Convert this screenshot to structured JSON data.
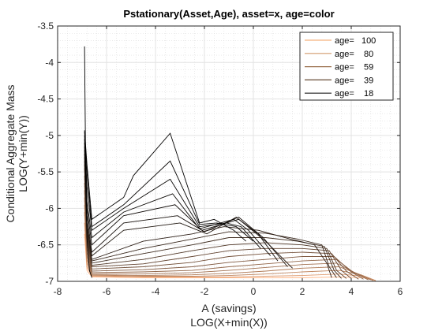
{
  "chart_data": {
    "type": "line",
    "title": "Pstationary(Asset,Age), asset=x, age=color",
    "xlabel": "A (savings)",
    "xlabel2": "LOG(X+min(X))",
    "ylabel": "Conditional Aggregate Mass",
    "ylabel2": "LOG(Y+min(Y))",
    "xlim": [
      -8,
      6
    ],
    "ylim": [
      -7,
      -3.5
    ],
    "xticks": [
      -8,
      -6,
      -4,
      -2,
      0,
      2,
      4,
      6
    ],
    "xtick_labels": [
      "-8",
      "-6",
      "-4",
      "-2",
      "0",
      "2",
      "4",
      "6"
    ],
    "yticks": [
      -7,
      -6.5,
      -6,
      -5.5,
      -5,
      -4.5,
      -4,
      -3.5
    ],
    "ytick_labels": [
      "-7",
      "-6.5",
      "-6",
      "-5.5",
      "-5",
      "-4.5",
      "-4",
      "-3.5"
    ],
    "grid": true,
    "minor_grid": true,
    "legend_position": "top-right",
    "legend": [
      {
        "label": "age=   100",
        "age": 100,
        "color": "#f5b27d"
      },
      {
        "label": "age=    80",
        "age": 80,
        "color": "#d39a6c"
      },
      {
        "label": "age=    59",
        "age": 59,
        "color": "#9c7250"
      },
      {
        "label": "age=    39",
        "age": 39,
        "color": "#664a34"
      },
      {
        "label": "age=    18",
        "age": 18,
        "color": "#1a1a1a"
      }
    ],
    "colormap": {
      "young": "#000000",
      "old": "#ffb27f"
    },
    "series": [
      {
        "age": 18,
        "x": [
          -6.9,
          -6.85,
          -6.8,
          -6.7,
          -6.6
        ],
        "y": [
          -3.78,
          -5.6,
          -6.4,
          -6.85,
          -6.95
        ]
      },
      {
        "age": 19,
        "x": [
          -6.9,
          -6.8,
          -6.6,
          -5.3,
          -4.9,
          -3.4,
          -2.2,
          -1.6,
          -0.8,
          -0.3
        ],
        "y": [
          -4.93,
          -5.4,
          -6.15,
          -5.85,
          -5.55,
          -4.97,
          -6.2,
          -6.15,
          -6.3,
          -6.45
        ]
      },
      {
        "age": 20,
        "x": [
          -6.9,
          -6.8,
          -6.6,
          -5.3,
          -3.4,
          -2.2,
          -1.5,
          -0.7,
          0.0
        ],
        "y": [
          -4.95,
          -5.5,
          -6.25,
          -5.95,
          -5.35,
          -6.22,
          -6.2,
          -6.25,
          -6.45
        ]
      },
      {
        "age": 21,
        "x": [
          -6.9,
          -6.8,
          -6.6,
          -5.3,
          -3.4,
          -2.2,
          -1.1,
          -0.5,
          0.3
        ],
        "y": [
          -5.0,
          -5.7,
          -6.3,
          -6.0,
          -5.6,
          -6.25,
          -6.2,
          -6.25,
          -6.55
        ]
      },
      {
        "age": 22,
        "x": [
          -6.9,
          -6.8,
          -6.6,
          -5.3,
          -3.3,
          -2.2,
          -0.8,
          -0.2,
          0.7
        ],
        "y": [
          -5.05,
          -5.9,
          -6.4,
          -6.05,
          -5.8,
          -6.28,
          -6.15,
          -6.3,
          -6.65
        ]
      },
      {
        "age": 23,
        "x": [
          -6.9,
          -6.8,
          -6.6,
          -5.3,
          -3.2,
          -2.1,
          -0.6,
          0.2,
          1.0
        ],
        "y": [
          -5.1,
          -6.0,
          -6.5,
          -6.1,
          -5.95,
          -6.3,
          -6.15,
          -6.35,
          -6.72
        ]
      },
      {
        "age": 25,
        "x": [
          -6.9,
          -6.8,
          -6.6,
          -5.3,
          -3.1,
          -2.0,
          -0.6,
          0.4,
          1.4
        ],
        "y": [
          -5.15,
          -6.1,
          -6.6,
          -6.2,
          -6.1,
          -6.32,
          -6.12,
          -6.4,
          -6.8
        ]
      },
      {
        "age": 28,
        "x": [
          -6.9,
          -6.8,
          -6.6,
          -5.3,
          -3.0,
          -1.9,
          -0.7,
          0.5,
          1.6
        ],
        "y": [
          -5.2,
          -6.2,
          -6.65,
          -6.3,
          -6.2,
          -6.35,
          -6.12,
          -6.45,
          -6.82
        ]
      },
      {
        "age": 32,
        "x": [
          -6.9,
          -6.8,
          -6.6,
          -4.5,
          -2.5,
          -1.2,
          0.2,
          1.5,
          2.5,
          3.0,
          3.2
        ],
        "y": [
          -5.25,
          -6.25,
          -6.7,
          -6.45,
          -6.35,
          -6.25,
          -6.3,
          -6.42,
          -6.5,
          -6.75,
          -6.95
        ]
      },
      {
        "age": 36,
        "x": [
          -6.9,
          -6.8,
          -6.6,
          -4.5,
          -2.5,
          -1.0,
          0.5,
          1.8,
          2.8,
          3.1,
          3.4
        ],
        "y": [
          -5.3,
          -6.3,
          -6.72,
          -6.55,
          -6.42,
          -6.32,
          -6.34,
          -6.42,
          -6.5,
          -6.8,
          -6.95
        ]
      },
      {
        "age": 39,
        "x": [
          -6.9,
          -6.8,
          -6.6,
          -4.5,
          -2.5,
          -1.0,
          0.5,
          1.8,
          2.9,
          3.3,
          3.6
        ],
        "y": [
          -5.35,
          -6.35,
          -6.75,
          -6.62,
          -6.5,
          -6.4,
          -6.4,
          -6.45,
          -6.52,
          -6.85,
          -6.96
        ]
      },
      {
        "age": 44,
        "x": [
          -6.9,
          -6.8,
          -6.6,
          -4.5,
          -2.5,
          -1.0,
          0.5,
          2.0,
          3.0,
          3.4,
          3.8
        ],
        "y": [
          -5.4,
          -6.4,
          -6.78,
          -6.7,
          -6.58,
          -6.5,
          -6.47,
          -6.5,
          -6.55,
          -6.85,
          -6.96
        ]
      },
      {
        "age": 50,
        "x": [
          -6.9,
          -6.8,
          -6.6,
          -4.5,
          -2.5,
          -1.0,
          0.5,
          2.0,
          3.1,
          3.6,
          4.0
        ],
        "y": [
          -5.45,
          -6.45,
          -6.8,
          -6.76,
          -6.66,
          -6.58,
          -6.55,
          -6.55,
          -6.58,
          -6.85,
          -6.96
        ]
      },
      {
        "age": 55,
        "x": [
          -6.9,
          -6.8,
          -6.6,
          -4.5,
          -2.5,
          -1.0,
          0.5,
          2.0,
          3.2,
          3.8,
          4.3
        ],
        "y": [
          -5.55,
          -6.5,
          -6.83,
          -6.8,
          -6.74,
          -6.66,
          -6.62,
          -6.6,
          -6.62,
          -6.86,
          -6.97
        ]
      },
      {
        "age": 59,
        "x": [
          -6.9,
          -6.8,
          -6.6,
          -4.5,
          -2.5,
          -1.0,
          0.5,
          2.0,
          3.3,
          4.0,
          4.5
        ],
        "y": [
          -5.65,
          -6.55,
          -6.86,
          -6.84,
          -6.8,
          -6.74,
          -6.7,
          -6.66,
          -6.66,
          -6.87,
          -6.97
        ]
      },
      {
        "age": 65,
        "x": [
          -6.9,
          -6.8,
          -6.6,
          -4.5,
          -2.5,
          -1.0,
          0.5,
          2.0,
          3.4,
          4.1,
          4.7
        ],
        "y": [
          -5.75,
          -6.6,
          -6.88,
          -6.87,
          -6.85,
          -6.8,
          -6.76,
          -6.72,
          -6.7,
          -6.88,
          -6.98
        ]
      },
      {
        "age": 70,
        "x": [
          -6.9,
          -6.8,
          -6.6,
          -4.5,
          -2.5,
          -1.0,
          0.5,
          2.0,
          3.4,
          4.2,
          4.8
        ],
        "y": [
          -5.85,
          -6.65,
          -6.9,
          -6.9,
          -6.88,
          -6.85,
          -6.81,
          -6.77,
          -6.75,
          -6.89,
          -6.98
        ]
      },
      {
        "age": 75,
        "x": [
          -6.9,
          -6.8,
          -6.6,
          -4.5,
          -2.5,
          -1.0,
          0.5,
          2.0,
          3.5,
          4.3,
          4.9
        ],
        "y": [
          -5.95,
          -6.7,
          -6.91,
          -6.92,
          -6.91,
          -6.89,
          -6.86,
          -6.82,
          -6.8,
          -6.9,
          -6.99
        ]
      },
      {
        "age": 80,
        "x": [
          -6.9,
          -6.8,
          -6.6,
          -4.5,
          -2.5,
          -1.0,
          0.5,
          2.0,
          3.5,
          4.4,
          5.0
        ],
        "y": [
          -6.05,
          -6.75,
          -6.92,
          -6.93,
          -6.93,
          -6.92,
          -6.9,
          -6.87,
          -6.85,
          -6.91,
          -6.99
        ]
      },
      {
        "age": 90,
        "x": [
          -6.9,
          -6.8,
          -6.6,
          -4.5,
          -2.5,
          -1.0,
          0.5,
          2.0,
          3.5,
          4.5,
          5.0
        ],
        "y": [
          -6.2,
          -6.8,
          -6.93,
          -6.94,
          -6.94,
          -6.94,
          -6.93,
          -6.92,
          -6.9,
          -6.93,
          -6.99
        ]
      },
      {
        "age": 100,
        "x": [
          -6.9,
          -6.8,
          -6.6,
          -4.5,
          -2.5,
          -1.0,
          0.5,
          2.0,
          3.5,
          4.5,
          5.0
        ],
        "y": [
          -6.35,
          -6.85,
          -6.94,
          -6.95,
          -6.95,
          -6.95,
          -6.95,
          -6.95,
          -6.94,
          -6.95,
          -6.99
        ]
      }
    ]
  }
}
